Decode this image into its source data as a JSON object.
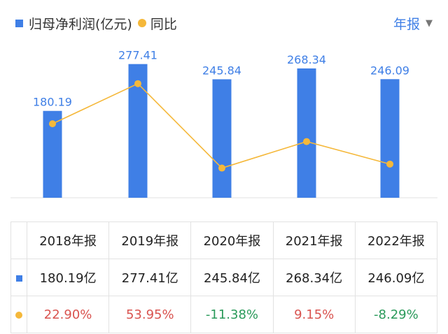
{
  "legend": {
    "bar_label": "归母净利润(亿元)",
    "line_label": "同比"
  },
  "period_selector": {
    "label": "年报"
  },
  "colors": {
    "bar": "#3f7fe6",
    "line": "#f5b83a",
    "positive": "#d9534f",
    "negative": "#2a9a5a"
  },
  "chart_data": {
    "type": "bar",
    "categories": [
      "2018年报",
      "2019年报",
      "2020年报",
      "2021年报",
      "2022年报"
    ],
    "series": [
      {
        "name": "归母净利润(亿元)",
        "type": "bar",
        "values": [
          180.19,
          277.41,
          245.84,
          268.34,
          246.09
        ],
        "labels": [
          "180.19",
          "277.41",
          "245.84",
          "268.34",
          "246.09"
        ]
      },
      {
        "name": "同比",
        "type": "line",
        "values": [
          22.9,
          53.95,
          -11.38,
          9.15,
          -8.29
        ]
      }
    ]
  },
  "table": {
    "headers": [
      "2018年报",
      "2019年报",
      "2020年报",
      "2021年报",
      "2022年报"
    ],
    "profit_row": [
      "180.19亿",
      "277.41亿",
      "245.84亿",
      "268.34亿",
      "246.09亿"
    ],
    "yoy_row": [
      "22.90%",
      "53.95%",
      "-11.38%",
      "9.15%",
      "-8.29%"
    ]
  }
}
